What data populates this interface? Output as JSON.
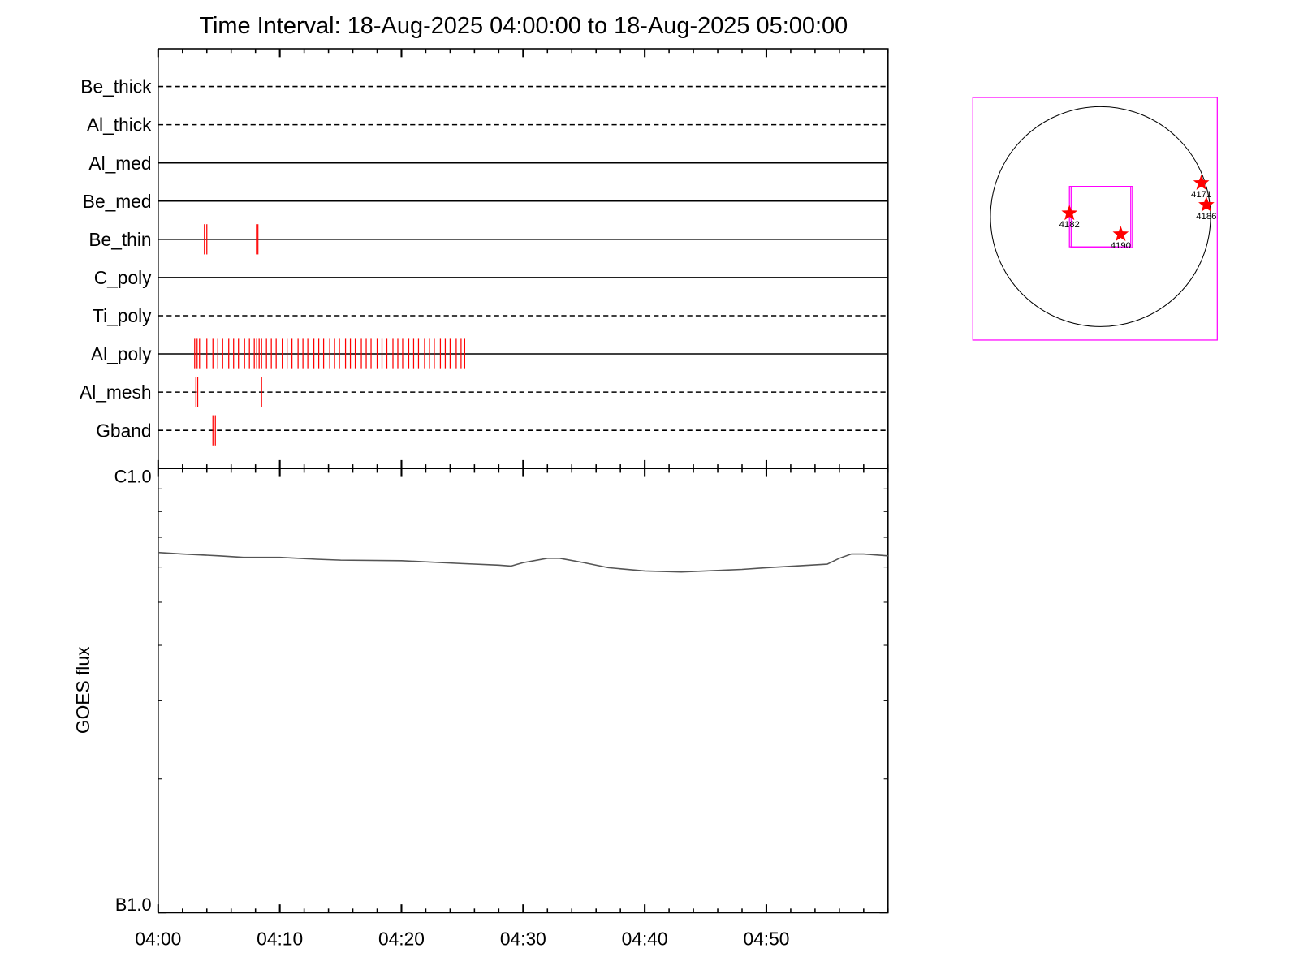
{
  "chart_data": [
    {
      "type": "timeline",
      "title": "Time Interval: 18-Aug-2025 04:00:00 to 18-Aug-2025 05:00:00",
      "categories": [
        "Be_thick",
        "Al_thick",
        "Al_med",
        "Be_med",
        "Be_thin",
        "C_poly",
        "Ti_poly",
        "Al_poly",
        "Al_mesh",
        "Gband"
      ],
      "line_styles": [
        "dashed",
        "dashed",
        "solid",
        "solid",
        "solid",
        "solid",
        "dashed",
        "solid",
        "dashed",
        "dashed"
      ],
      "events": [
        [],
        [],
        [],
        [],
        [
          3.8,
          4.0,
          8.08,
          8.2
        ],
        [],
        [],
        [
          3.0,
          3.2,
          3.4,
          4.0,
          4.5,
          4.9,
          5.3,
          5.8,
          6.2,
          6.6,
          7.1,
          7.5,
          7.9,
          8.1,
          8.3,
          8.5,
          8.9,
          9.3,
          9.7,
          10.2,
          10.6,
          11.0,
          11.5,
          11.9,
          12.3,
          12.8,
          13.2,
          13.6,
          14.1,
          14.5,
          14.9,
          15.4,
          15.8,
          16.2,
          16.7,
          17.1,
          17.5,
          18.0,
          18.4,
          18.8,
          19.3,
          19.7,
          20.1,
          20.6,
          21.0,
          21.4,
          21.9,
          22.3,
          22.7,
          23.2,
          23.6,
          24.0,
          24.5,
          24.9,
          25.2
        ],
        [
          3.1,
          3.25,
          8.5
        ],
        [
          4.5,
          4.7
        ]
      ],
      "color": "#ff0000",
      "xlim": [
        0,
        60
      ]
    },
    {
      "type": "line",
      "ylabel": "GOES flux",
      "x": [
        0,
        2,
        5,
        7,
        10,
        13,
        15,
        20,
        25,
        28,
        29,
        30,
        32,
        33,
        35,
        37,
        40,
        43,
        45,
        48,
        50,
        55,
        56,
        57,
        58,
        60
      ],
      "values": [
        6.47e-07,
        6.42e-07,
        6.36e-07,
        6.31e-07,
        6.31e-07,
        6.25e-07,
        6.22e-07,
        6.2e-07,
        6.11e-07,
        6.06e-07,
        6.03e-07,
        6.14e-07,
        6.28e-07,
        6.28e-07,
        6.14e-07,
        5.98e-07,
        5.88e-07,
        5.85e-07,
        5.88e-07,
        5.93e-07,
        5.98e-07,
        6.09e-07,
        6.28e-07,
        6.42e-07,
        6.42e-07,
        6.36e-07
      ],
      "color": "#555555",
      "xlim": [
        0,
        60
      ],
      "xticks": [
        {
          "value": 0,
          "label": "04:00"
        },
        {
          "value": 10,
          "label": "04:10"
        },
        {
          "value": 20,
          "label": "04:20"
        },
        {
          "value": 30,
          "label": "04:30"
        },
        {
          "value": 40,
          "label": "04:40"
        },
        {
          "value": 50,
          "label": "04:50"
        }
      ],
      "ylim": [
        1e-07,
        1e-06
      ],
      "yticks": [
        {
          "value": 1e-06,
          "label": "C1.0"
        },
        {
          "value": 1e-07,
          "label": "B1.0"
        }
      ],
      "log_scale": true
    }
  ],
  "sun_map": {
    "regions": [
      "4182",
      "4190",
      "4171",
      "4186"
    ],
    "color": "#ff0000",
    "frame_color": "#ff00ff"
  }
}
